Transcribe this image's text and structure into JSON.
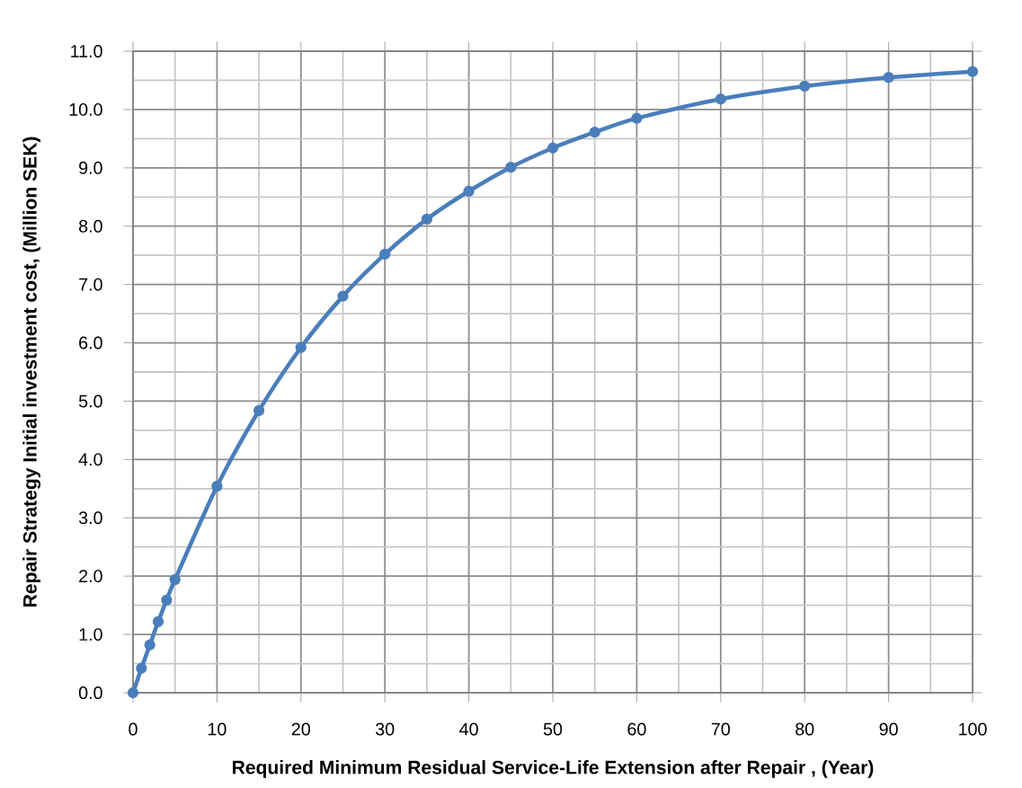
{
  "chart_data": {
    "type": "line",
    "xlabel": "Required Minimum Residual Service-Life Extension after Repair , (Year)",
    "ylabel": "Repair Strategy Initial investment cost, (Million SEK)",
    "x": [
      0,
      1,
      2,
      3,
      4,
      5,
      10,
      15,
      20,
      25,
      30,
      35,
      40,
      45,
      50,
      55,
      60,
      70,
      80,
      90,
      100
    ],
    "series": [
      {
        "color": "#4a7ebb",
        "values": [
          0.0,
          0.42,
          0.82,
          1.22,
          1.59,
          1.94,
          3.54,
          4.84,
          5.92,
          6.8,
          7.52,
          8.12,
          8.6,
          9.01,
          9.34,
          9.61,
          9.85,
          10.18,
          10.4,
          10.55,
          10.65
        ]
      }
    ],
    "xlim": [
      0,
      100
    ],
    "xticks": [
      0,
      10,
      20,
      30,
      40,
      50,
      60,
      70,
      80,
      90,
      100
    ],
    "ylim": [
      0,
      11
    ],
    "yticks": [
      {
        "value": 0,
        "label": "0.0"
      },
      {
        "value": 1,
        "label": "1.0"
      },
      {
        "value": 2,
        "label": "2.0"
      },
      {
        "value": 3,
        "label": "3.0"
      },
      {
        "value": 4,
        "label": "4.0"
      },
      {
        "value": 5,
        "label": "5.0"
      },
      {
        "value": 6,
        "label": "6.0"
      },
      {
        "value": 7,
        "label": "7.0"
      },
      {
        "value": 8,
        "label": "8.0"
      },
      {
        "value": 9,
        "label": "9.0"
      },
      {
        "value": 10,
        "label": "10.0"
      },
      {
        "value": 11,
        "label": "11.0"
      }
    ],
    "grid": true,
    "marker": "circle",
    "line_style": "solid"
  }
}
